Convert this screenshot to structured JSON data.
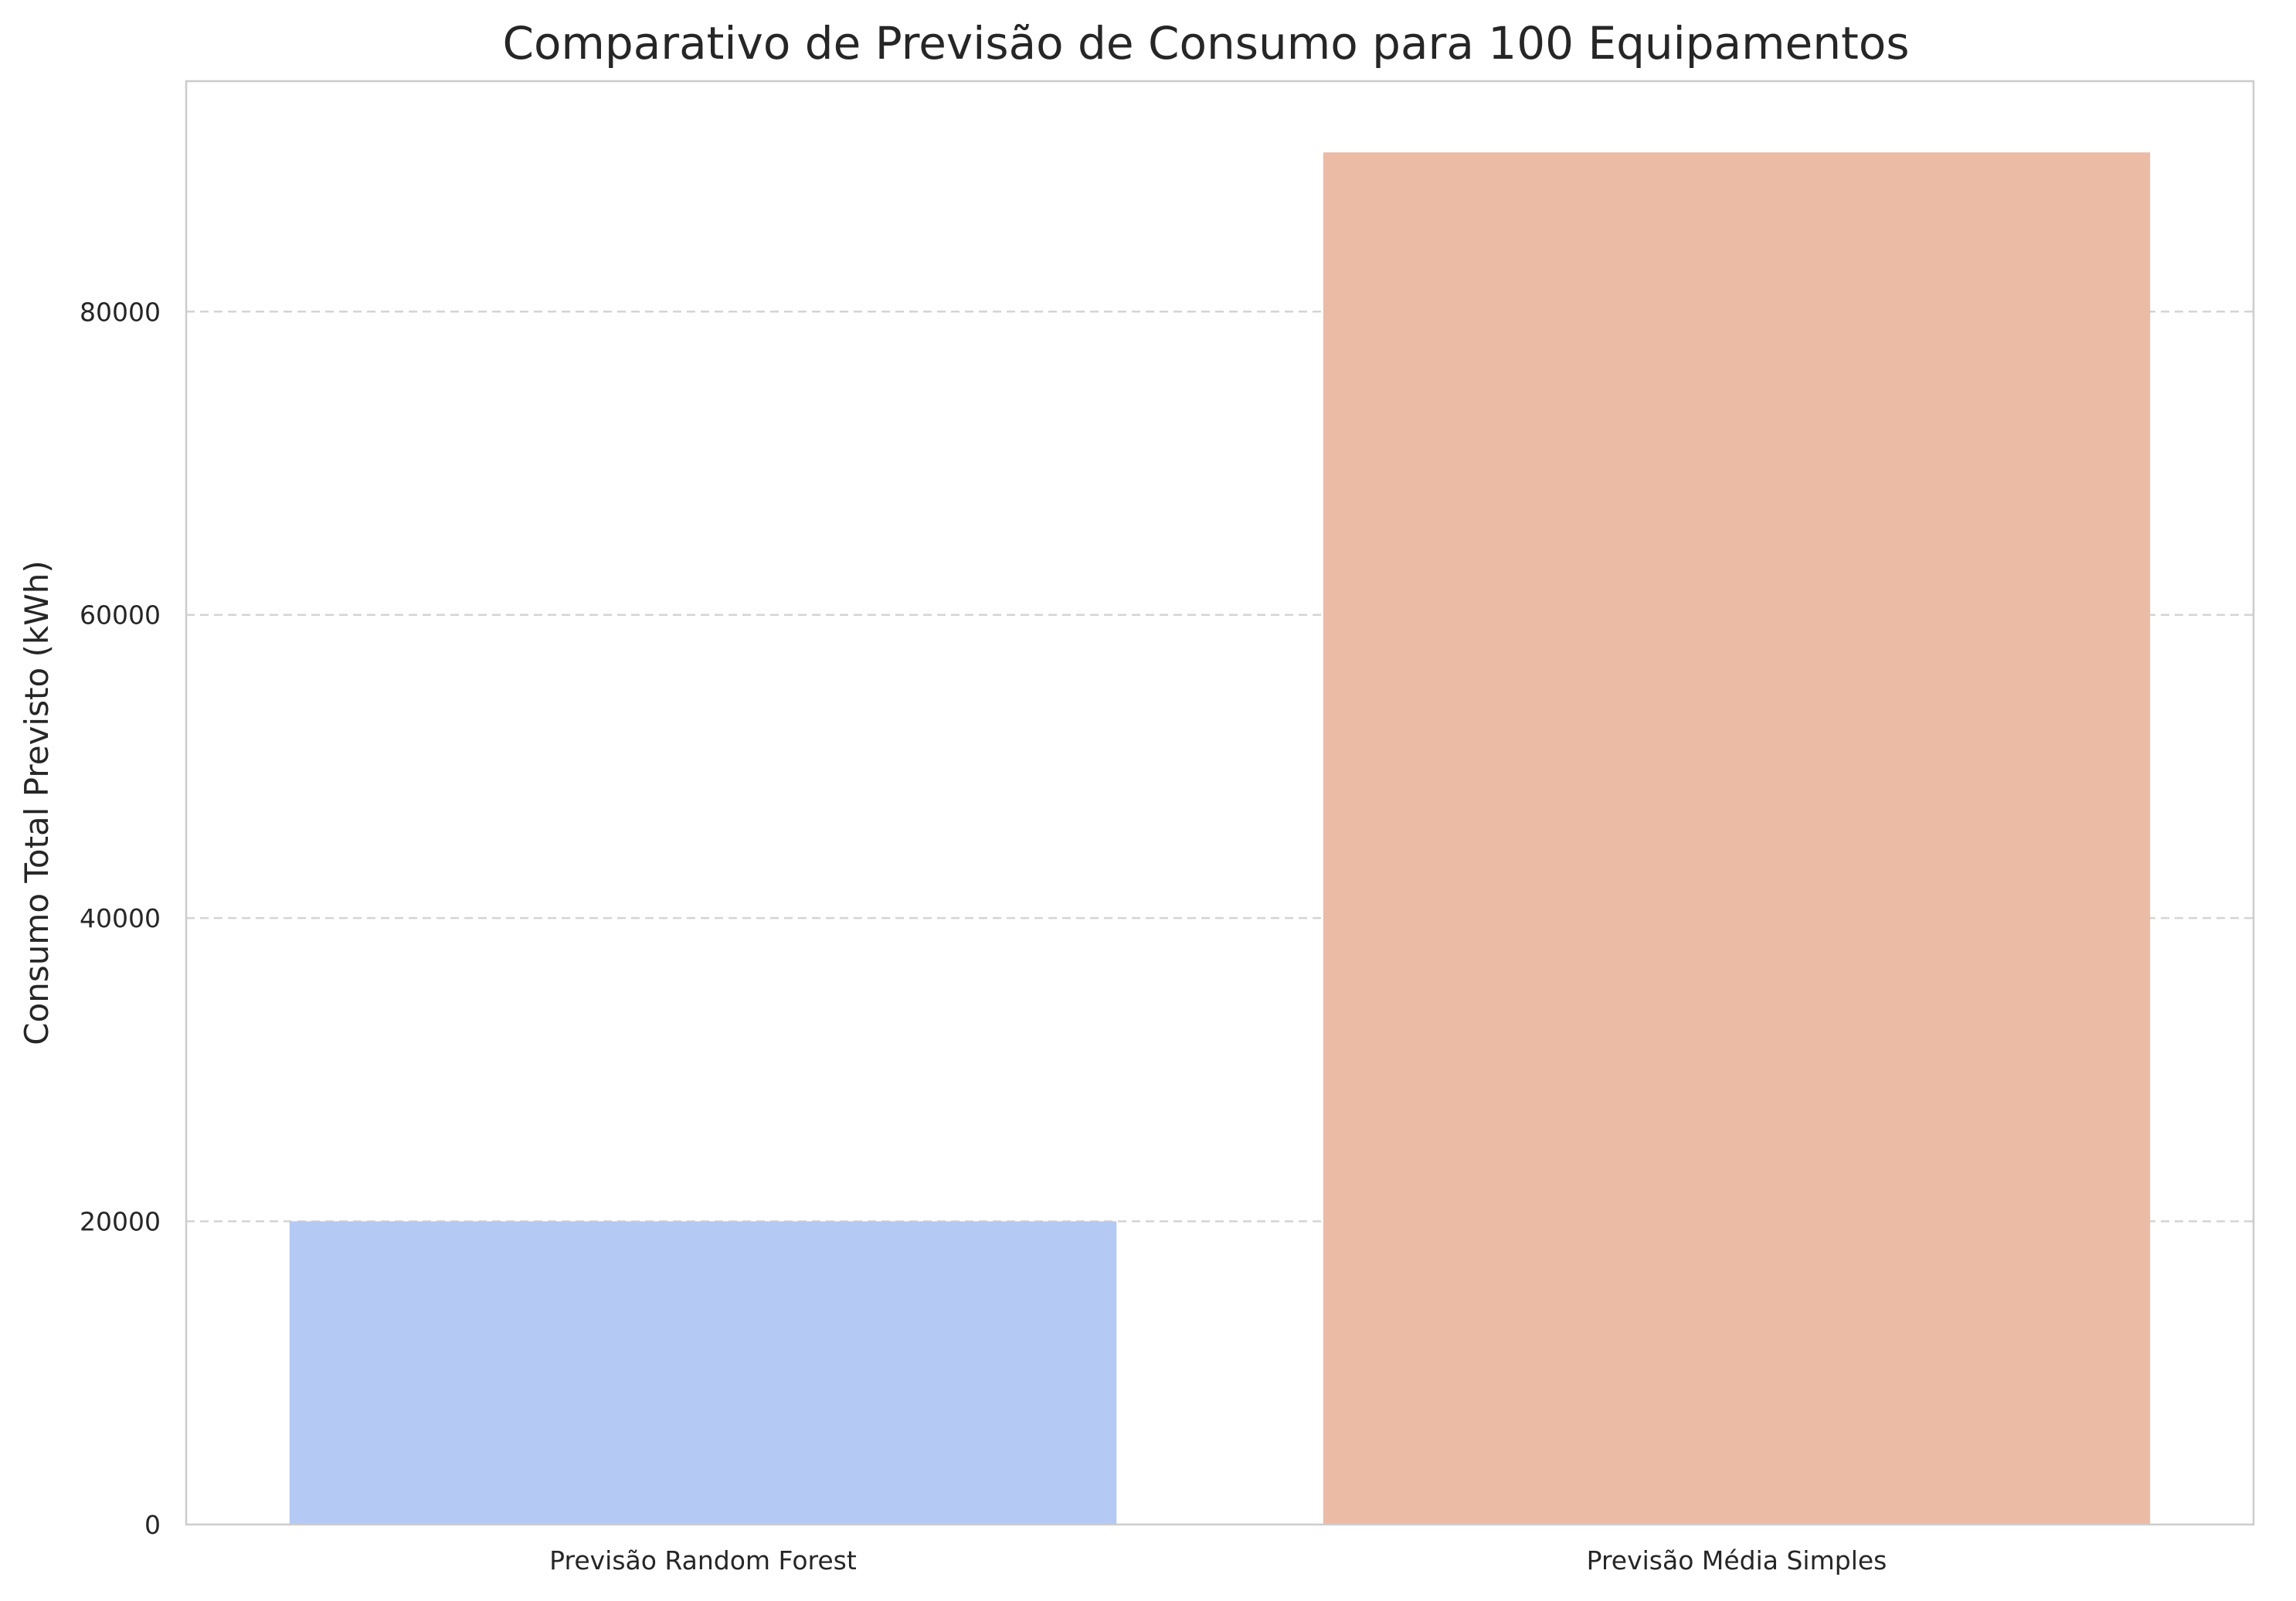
{
  "chart_data": {
    "type": "bar",
    "title": "Comparativo de Previsão de Consumo para 100 Equipamentos",
    "xlabel": "",
    "ylabel": "Consumo Total Previsto (kWh)",
    "categories": [
      "Previsão Random Forest",
      "Previsão Média Simples"
    ],
    "values": [
      20000,
      90500
    ],
    "colors": [
      "#b4c9f3",
      "#ebbba6"
    ],
    "ylim": [
      0,
      95200
    ],
    "yticks": [
      0,
      20000,
      40000,
      60000,
      80000
    ],
    "grid": true,
    "grid_axis": "y",
    "grid_style": "dashed",
    "legend": "none"
  }
}
